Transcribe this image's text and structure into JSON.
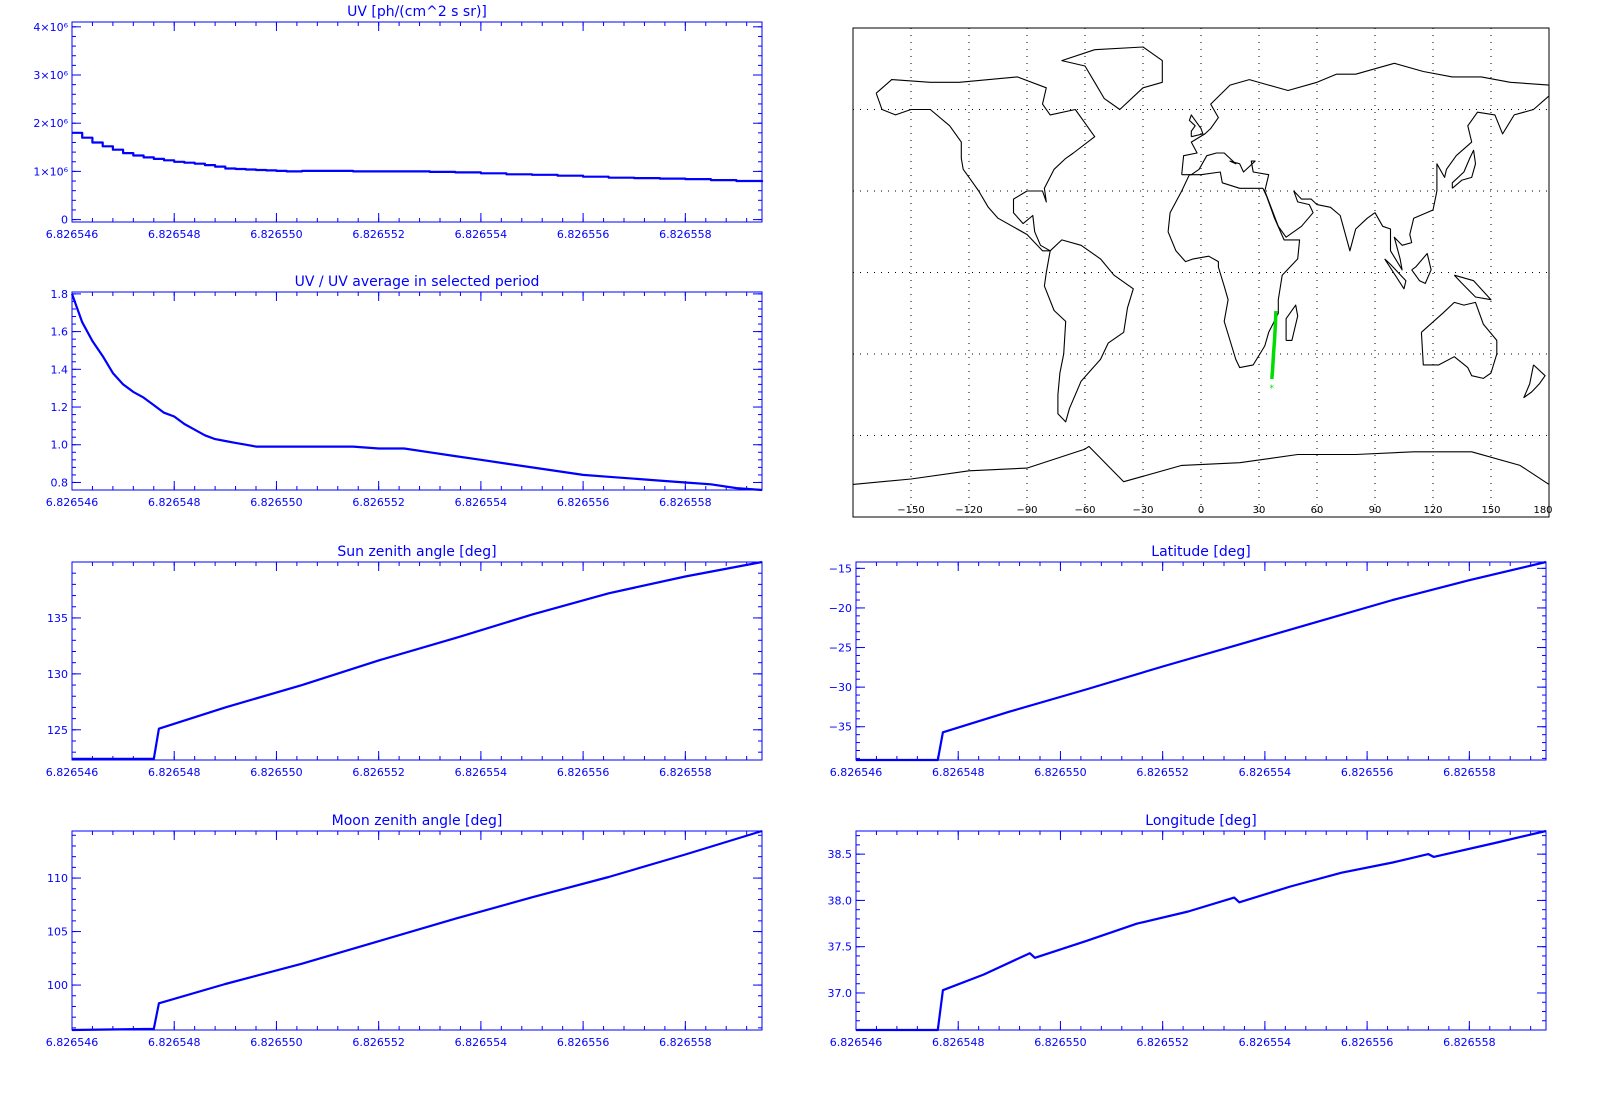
{
  "chart_data": [
    {
      "id": "uv",
      "type": "line",
      "title": "UV [ph/(cm^2 s sr)]",
      "xlim": [
        6.826546,
        6.8265595
      ],
      "ylim": [
        -50000,
        4100000
      ],
      "x_ticks": [
        6.826546,
        6.826548,
        6.82655,
        6.826552,
        6.826554,
        6.826556,
        6.826558
      ],
      "x_tick_labels": [
        "6.826546",
        "6.826548",
        "6.826550",
        "6.826552",
        "6.826554",
        "6.826556",
        "6.826558"
      ],
      "y_ticks": [
        0,
        1000000,
        2000000,
        3000000,
        4000000
      ],
      "y_tick_labels": [
        "0",
        "1×10⁶",
        "2×10⁶",
        "3×10⁶",
        "4×10⁶"
      ],
      "step": true,
      "series": [
        {
          "color": "#0000ff",
          "x": [
            6.826546,
            6.8265462,
            6.8265464,
            6.8265466,
            6.8265468,
            6.826547,
            6.8265472,
            6.8265474,
            6.8265476,
            6.8265478,
            6.826548,
            6.8265482,
            6.8265484,
            6.8265486,
            6.8265488,
            6.826549,
            6.8265492,
            6.8265494,
            6.8265496,
            6.8265498,
            6.82655,
            6.8265502,
            6.8265505,
            6.826551,
            6.8265515,
            6.826552,
            6.8265525,
            6.826553,
            6.8265535,
            6.826554,
            6.8265545,
            6.826555,
            6.8265555,
            6.826556,
            6.8265565,
            6.826557,
            6.8265575,
            6.826558,
            6.8265585,
            6.826559,
            6.8265595
          ],
          "y": [
            1800000,
            1700000,
            1600000,
            1520000,
            1450000,
            1380000,
            1330000,
            1290000,
            1260000,
            1230000,
            1200000,
            1180000,
            1160000,
            1130000,
            1100000,
            1060000,
            1050000,
            1040000,
            1030000,
            1020000,
            1010000,
            1000000,
            1010000,
            1010000,
            1000000,
            1000000,
            1000000,
            990000,
            980000,
            960000,
            940000,
            930000,
            910000,
            890000,
            870000,
            860000,
            850000,
            840000,
            820000,
            800000,
            780000
          ]
        }
      ]
    },
    {
      "id": "uv-ratio",
      "type": "line",
      "title": "UV / UV average in selected period",
      "xlim": [
        6.826546,
        6.8265595
      ],
      "ylim": [
        0.76,
        1.81
      ],
      "x_ticks": [
        6.826546,
        6.826548,
        6.82655,
        6.826552,
        6.826554,
        6.826556,
        6.826558
      ],
      "x_tick_labels": [
        "6.826546",
        "6.826548",
        "6.826550",
        "6.826552",
        "6.826554",
        "6.826556",
        "6.826558"
      ],
      "y_ticks": [
        0.8,
        1.0,
        1.2,
        1.4,
        1.6,
        1.8
      ],
      "y_tick_labels": [
        "0.8",
        "1.0",
        "1.2",
        "1.4",
        "1.6",
        "1.8"
      ],
      "series": [
        {
          "color": "#0000ff",
          "x": [
            6.826546,
            6.8265462,
            6.8265464,
            6.8265466,
            6.8265468,
            6.826547,
            6.8265472,
            6.8265474,
            6.8265476,
            6.8265478,
            6.826548,
            6.8265482,
            6.8265484,
            6.8265486,
            6.8265488,
            6.826549,
            6.8265492,
            6.8265494,
            6.8265496,
            6.8265498,
            6.82655,
            6.8265505,
            6.826551,
            6.8265515,
            6.826552,
            6.8265525,
            6.826553,
            6.8265535,
            6.826554,
            6.8265545,
            6.826555,
            6.8265555,
            6.826556,
            6.8265565,
            6.826557,
            6.8265575,
            6.826558,
            6.8265585,
            6.826559,
            6.8265595
          ],
          "y": [
            1.8,
            1.65,
            1.55,
            1.47,
            1.38,
            1.32,
            1.28,
            1.25,
            1.21,
            1.17,
            1.15,
            1.11,
            1.08,
            1.05,
            1.03,
            1.02,
            1.01,
            1.0,
            0.99,
            0.99,
            0.99,
            0.99,
            0.99,
            0.99,
            0.98,
            0.98,
            0.96,
            0.94,
            0.92,
            0.9,
            0.88,
            0.86,
            0.84,
            0.83,
            0.82,
            0.81,
            0.8,
            0.79,
            0.77,
            0.76
          ]
        }
      ]
    },
    {
      "id": "sun-zenith",
      "type": "line",
      "title": "Sun zenith angle [deg]",
      "xlim": [
        6.826546,
        6.8265595
      ],
      "ylim": [
        122.3,
        140
      ],
      "x_ticks": [
        6.826546,
        6.826548,
        6.82655,
        6.826552,
        6.826554,
        6.826556,
        6.826558
      ],
      "x_tick_labels": [
        "6.826546",
        "6.826548",
        "6.826550",
        "6.826552",
        "6.826554",
        "6.826556",
        "6.826558"
      ],
      "y_ticks": [
        125,
        130,
        135
      ],
      "y_tick_labels": [
        "125",
        "130",
        "135"
      ],
      "series": [
        {
          "color": "#0000ff",
          "x": [
            6.826546,
            6.8265476,
            6.8265477,
            6.826549,
            6.8265505,
            6.826552,
            6.8265535,
            6.826555,
            6.8265565,
            6.826558,
            6.8265595
          ],
          "y": [
            122.4,
            122.4,
            125.1,
            127.0,
            129.0,
            131.2,
            133.2,
            135.3,
            137.2,
            138.7,
            140
          ]
        }
      ]
    },
    {
      "id": "latitude",
      "type": "line",
      "title": "Latitude [deg]",
      "xlim": [
        6.826546,
        6.8265595
      ],
      "ylim": [
        -39.2,
        -14.2
      ],
      "x_ticks": [
        6.826546,
        6.826548,
        6.82655,
        6.826552,
        6.826554,
        6.826556,
        6.826558
      ],
      "x_tick_labels": [
        "6.826546",
        "6.826548",
        "6.826550",
        "6.826552",
        "6.826554",
        "6.826556",
        "6.826558"
      ],
      "y_ticks": [
        -35,
        -30,
        -25,
        -20,
        -15
      ],
      "y_tick_labels": [
        "−35",
        "−30",
        "−25",
        "−20",
        "−15"
      ],
      "series": [
        {
          "color": "#0000ff",
          "x": [
            6.826546,
            6.8265476,
            6.8265477,
            6.826549,
            6.8265505,
            6.826552,
            6.8265535,
            6.826555,
            6.8265565,
            6.826558,
            6.8265595
          ],
          "y": [
            -39.2,
            -39.2,
            -35.7,
            -33.1,
            -30.3,
            -27.4,
            -24.6,
            -21.8,
            -19.0,
            -16.5,
            -14.2
          ]
        }
      ]
    },
    {
      "id": "moon-zenith",
      "type": "line",
      "title": "Moon zenith angle [deg]",
      "xlim": [
        6.826546,
        6.8265595
      ],
      "ylim": [
        95.8,
        114.4
      ],
      "x_ticks": [
        6.826546,
        6.826548,
        6.82655,
        6.826552,
        6.826554,
        6.826556,
        6.826558
      ],
      "x_tick_labels": [
        "6.826546",
        "6.826548",
        "6.826550",
        "6.826552",
        "6.826554",
        "6.826556",
        "6.826558"
      ],
      "y_ticks": [
        100,
        105,
        110
      ],
      "y_tick_labels": [
        "100",
        "105",
        "110"
      ],
      "series": [
        {
          "color": "#0000ff",
          "x": [
            6.826546,
            6.8265476,
            6.8265477,
            6.826549,
            6.8265505,
            6.826552,
            6.8265535,
            6.826555,
            6.8265565,
            6.826558,
            6.8265595
          ],
          "y": [
            95.8,
            95.9,
            98.3,
            100.1,
            102.0,
            104.1,
            106.2,
            108.2,
            110.1,
            112.2,
            114.4
          ]
        }
      ]
    },
    {
      "id": "longitude",
      "type": "line",
      "title": "Longitude [deg]",
      "xlim": [
        6.826546,
        6.8265595
      ],
      "ylim": [
        36.6,
        38.75
      ],
      "x_ticks": [
        6.826546,
        6.826548,
        6.82655,
        6.826552,
        6.826554,
        6.826556,
        6.826558
      ],
      "x_tick_labels": [
        "6.826546",
        "6.826548",
        "6.826550",
        "6.826552",
        "6.826554",
        "6.826556",
        "6.826558"
      ],
      "y_ticks": [
        37.0,
        37.5,
        38.0,
        38.5
      ],
      "y_tick_labels": [
        "37.0",
        "37.5",
        "38.0",
        "38.5"
      ],
      "series": [
        {
          "color": "#0000ff",
          "x": [
            6.826546,
            6.8265476,
            6.8265477,
            6.8265485,
            6.8265494,
            6.8265495,
            6.8265505,
            6.8265515,
            6.8265525,
            6.8265534,
            6.8265535,
            6.8265545,
            6.8265555,
            6.8265565,
            6.8265572,
            6.8265573,
            6.8265585,
            6.8265595
          ],
          "y": [
            36.6,
            36.6,
            37.03,
            37.2,
            37.43,
            37.38,
            37.56,
            37.75,
            37.88,
            38.03,
            37.98,
            38.15,
            38.3,
            38.41,
            38.5,
            38.47,
            38.62,
            38.75
          ]
        }
      ]
    },
    {
      "id": "ground-track-map",
      "type": "scatter",
      "x_ticks": [
        -150,
        -120,
        -90,
        -60,
        -30,
        0,
        30,
        60,
        90,
        120,
        150,
        180
      ],
      "x_tick_labels": [
        "−150",
        "−120",
        "−90",
        "−60",
        "−30",
        "0",
        "30",
        "60",
        "90",
        "120",
        "150",
        "180"
      ],
      "xlim": [
        -180,
        180
      ],
      "ylim": [
        -90,
        90
      ],
      "grid": true,
      "series": [
        {
          "color": "#00dd00",
          "x": [
            36.6,
            37.03,
            37.5,
            38.0,
            38.5,
            38.75
          ],
          "y": [
            -39.2,
            -35.7,
            -30.0,
            -25.0,
            -19.0,
            -14.2
          ]
        }
      ]
    }
  ]
}
